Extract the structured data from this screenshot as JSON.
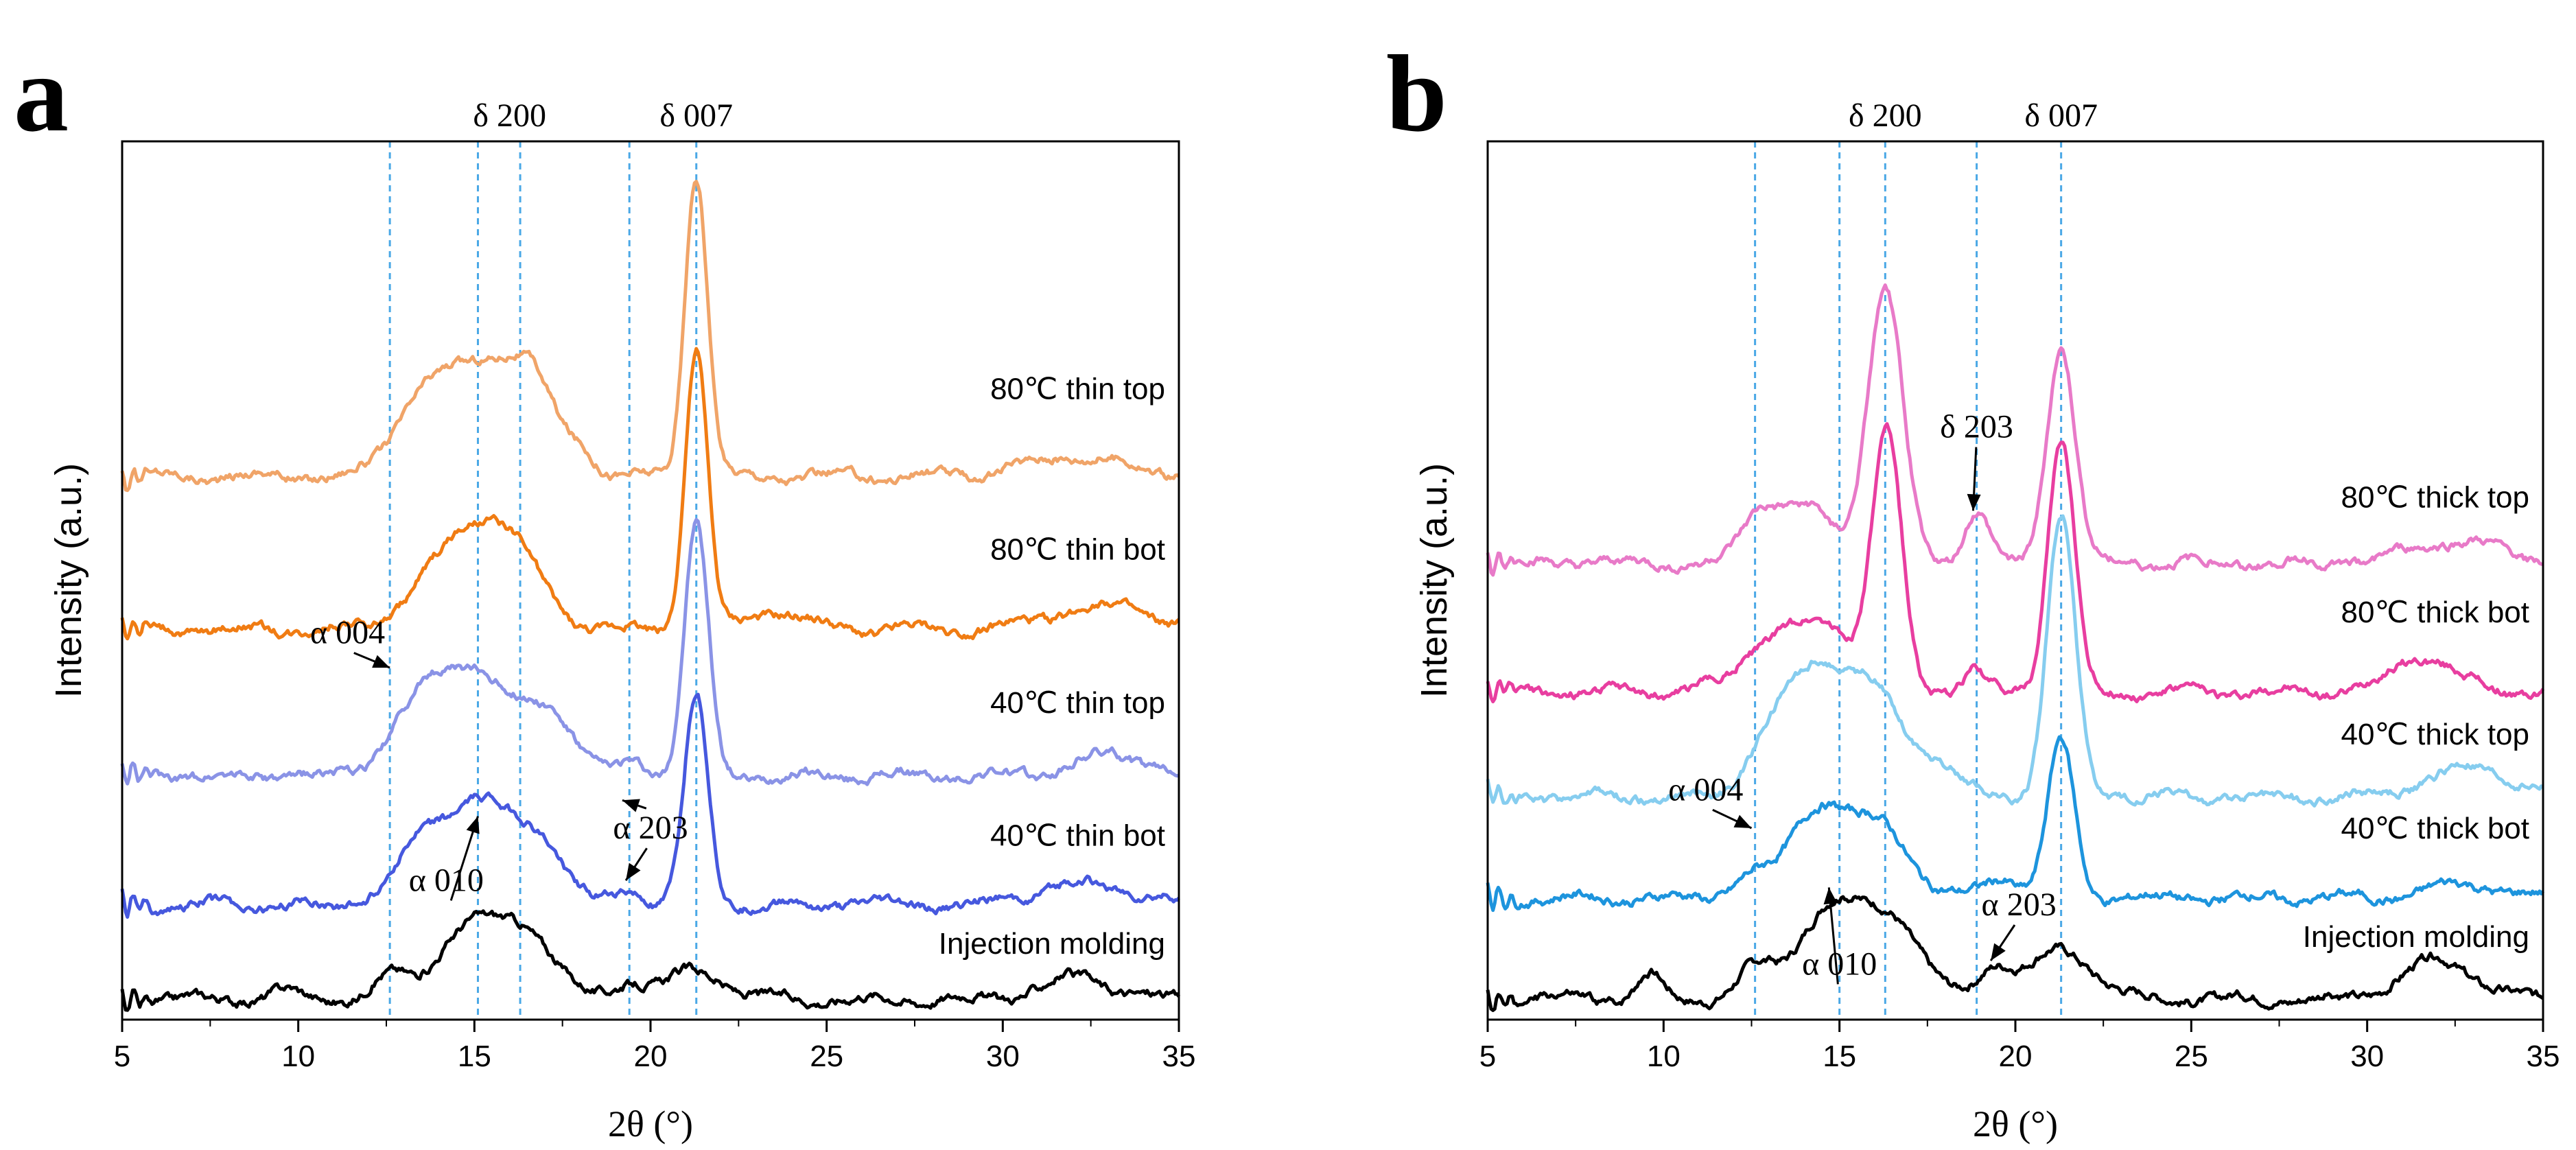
{
  "chart_data": [
    {
      "panel": "a",
      "type": "line",
      "xlabel": "2θ (°)",
      "ylabel": "Intensity (a.u.)",
      "xlim": [
        5,
        35
      ],
      "x_ticks": [
        5,
        10,
        15,
        20,
        25,
        30,
        35
      ],
      "reference_lines": [
        12.6,
        15.1,
        16.3,
        19.4,
        21.3
      ],
      "top_labels": [
        {
          "text": "δ 200",
          "x": 16.0
        },
        {
          "text": "δ 007",
          "x": 21.3
        }
      ],
      "annotations": [
        {
          "text": "α 004",
          "x": 11.4,
          "level": 5.1,
          "arrow_to": [
            12.6,
            4.75
          ]
        },
        {
          "text": "α 010",
          "x": 14.2,
          "level": 1.55,
          "arrow_to": [
            15.1,
            2.62
          ]
        },
        {
          "text": "α 203",
          "x": 20.0,
          "level": 2.3,
          "arrow_up_to": [
            19.2,
            2.85
          ],
          "arrow_down_to": [
            19.3,
            1.7
          ]
        }
      ],
      "series": [
        {
          "name": "80℃ thin top",
          "color": "#f0a468",
          "offset": 7.5,
          "label_level": 8.6,
          "peaks": [
            [
              13.5,
              1.0,
              0.8
            ],
            [
              15.3,
              1.5,
              1.0
            ],
            [
              16.7,
              1.0,
              0.7
            ],
            [
              18.1,
              0.3,
              0.4
            ],
            [
              21.3,
              4.3,
              0.32
            ],
            [
              32.1,
              0.3,
              1.3
            ]
          ]
        },
        {
          "name": "80℃ thin bot",
          "color": "#f07c13",
          "offset": 5.3,
          "label_level": 6.3,
          "peaks": [
            [
              14.5,
              1.1,
              1.1
            ],
            [
              16.0,
              1.0,
              0.9
            ],
            [
              21.3,
              4.0,
              0.32
            ],
            [
              23.5,
              0.25,
              0.8
            ],
            [
              32.8,
              0.35,
              1.3
            ]
          ]
        },
        {
          "name": "40℃ thin top",
          "color": "#8a93e6",
          "offset": 3.2,
          "label_level": 4.1,
          "peaks": [
            [
              13.3,
              0.7,
              0.8
            ],
            [
              15.0,
              1.5,
              1.1
            ],
            [
              17.2,
              0.8,
              0.7
            ],
            [
              19.5,
              0.2,
              0.4
            ],
            [
              21.3,
              3.6,
              0.34
            ],
            [
              33.1,
              0.3,
              1.0
            ]
          ]
        },
        {
          "name": "40℃ thin bot",
          "color": "#4658de",
          "offset": 1.35,
          "label_level": 2.2,
          "peaks": [
            [
              13.5,
              0.8,
              0.8
            ],
            [
              15.2,
              1.4,
              0.9
            ],
            [
              16.9,
              0.8,
              0.7
            ],
            [
              19.4,
              0.2,
              0.4
            ],
            [
              21.3,
              3.0,
              0.34
            ],
            [
              32.3,
              0.3,
              1.3
            ]
          ]
        },
        {
          "name": "Injection molding",
          "color": "#000000",
          "offset": 0.0,
          "label_level": 0.65,
          "peaks": [
            [
              9.6,
              0.12,
              0.4
            ],
            [
              12.6,
              0.3,
              0.5
            ],
            [
              14.8,
              1.0,
              0.9
            ],
            [
              16.5,
              0.9,
              0.8
            ],
            [
              19.4,
              0.25,
              0.45
            ],
            [
              21.3,
              0.4,
              0.8
            ],
            [
              32.1,
              0.3,
              1.0
            ]
          ]
        }
      ]
    },
    {
      "panel": "b",
      "type": "line",
      "xlabel": "2θ (°)",
      "ylabel": "Intensity (a.u.)",
      "xlim": [
        5,
        35
      ],
      "x_ticks": [
        5,
        10,
        15,
        20,
        25,
        30,
        35
      ],
      "reference_lines": [
        12.6,
        15.0,
        16.3,
        18.9,
        21.3
      ],
      "top_labels": [
        {
          "text": "δ 200",
          "x": 16.3
        },
        {
          "text": "δ 007",
          "x": 21.3
        }
      ],
      "annotations": [
        {
          "text": "δ 203",
          "x": 18.9,
          "level": 8.05,
          "arrow_to": [
            18.8,
            7.0
          ]
        },
        {
          "text": "α 004",
          "x": 11.2,
          "level": 2.85,
          "arrow_to": [
            12.5,
            2.45
          ]
        },
        {
          "text": "α 010",
          "x": 15.0,
          "level": 0.35,
          "arrow_to": [
            14.7,
            1.6
          ]
        },
        {
          "text": "α 203",
          "x": 20.1,
          "level": 1.2,
          "arrow_to": [
            19.3,
            0.55
          ]
        }
      ],
      "series": [
        {
          "name": "80℃ thick top",
          "color": "#e87ac8",
          "offset": 6.25,
          "label_level": 7.05,
          "peaks": [
            [
              12.7,
              0.6,
              0.5
            ],
            [
              14.0,
              0.8,
              0.8
            ],
            [
              16.3,
              3.9,
              0.5
            ],
            [
              18.9,
              0.75,
              0.35
            ],
            [
              21.3,
              3.1,
              0.4
            ],
            [
              32.5,
              0.3,
              1.3
            ]
          ]
        },
        {
          "name": "80℃ thick bot",
          "color": "#e83ea0",
          "offset": 4.4,
          "label_level": 5.4,
          "peaks": [
            [
              13.0,
              0.7,
              0.9
            ],
            [
              14.7,
              0.9,
              0.8
            ],
            [
              16.35,
              3.6,
              0.42
            ],
            [
              18.8,
              0.3,
              0.3
            ],
            [
              21.3,
              3.6,
              0.38
            ],
            [
              31.6,
              0.5,
              0.9
            ]
          ]
        },
        {
          "name": "40℃ thick top",
          "color": "#86cdef",
          "offset": 2.9,
          "label_level": 3.65,
          "peaks": [
            [
              12.8,
              0.4,
              0.6
            ],
            [
              14.2,
              1.7,
              0.9
            ],
            [
              16.0,
              1.4,
              0.9
            ],
            [
              17.9,
              0.4,
              0.6
            ],
            [
              21.3,
              4.0,
              0.4
            ],
            [
              32.9,
              0.4,
              1.2
            ]
          ]
        },
        {
          "name": "40℃ thick bot",
          "color": "#1d94dd",
          "offset": 1.45,
          "label_level": 2.3,
          "peaks": [
            [
              12.5,
              0.3,
              0.5
            ],
            [
              14.4,
              1.3,
              0.8
            ],
            [
              16.2,
              1.0,
              0.8
            ],
            [
              19.6,
              0.3,
              0.5
            ],
            [
              21.3,
              2.25,
              0.38
            ],
            [
              32.8,
              0.2,
              1.0
            ]
          ]
        },
        {
          "name": "Injection molding",
          "color": "#000000",
          "offset": 0.0,
          "label_level": 0.75,
          "peaks": [
            [
              9.6,
              0.35,
              0.35
            ],
            [
              12.6,
              0.4,
              0.5
            ],
            [
              14.7,
              1.3,
              0.9
            ],
            [
              16.5,
              1.1,
              0.8
            ],
            [
              19.4,
              0.45,
              0.5
            ],
            [
              21.3,
              0.7,
              0.9
            ],
            [
              32.0,
              0.55,
              1.0
            ]
          ]
        }
      ]
    }
  ]
}
